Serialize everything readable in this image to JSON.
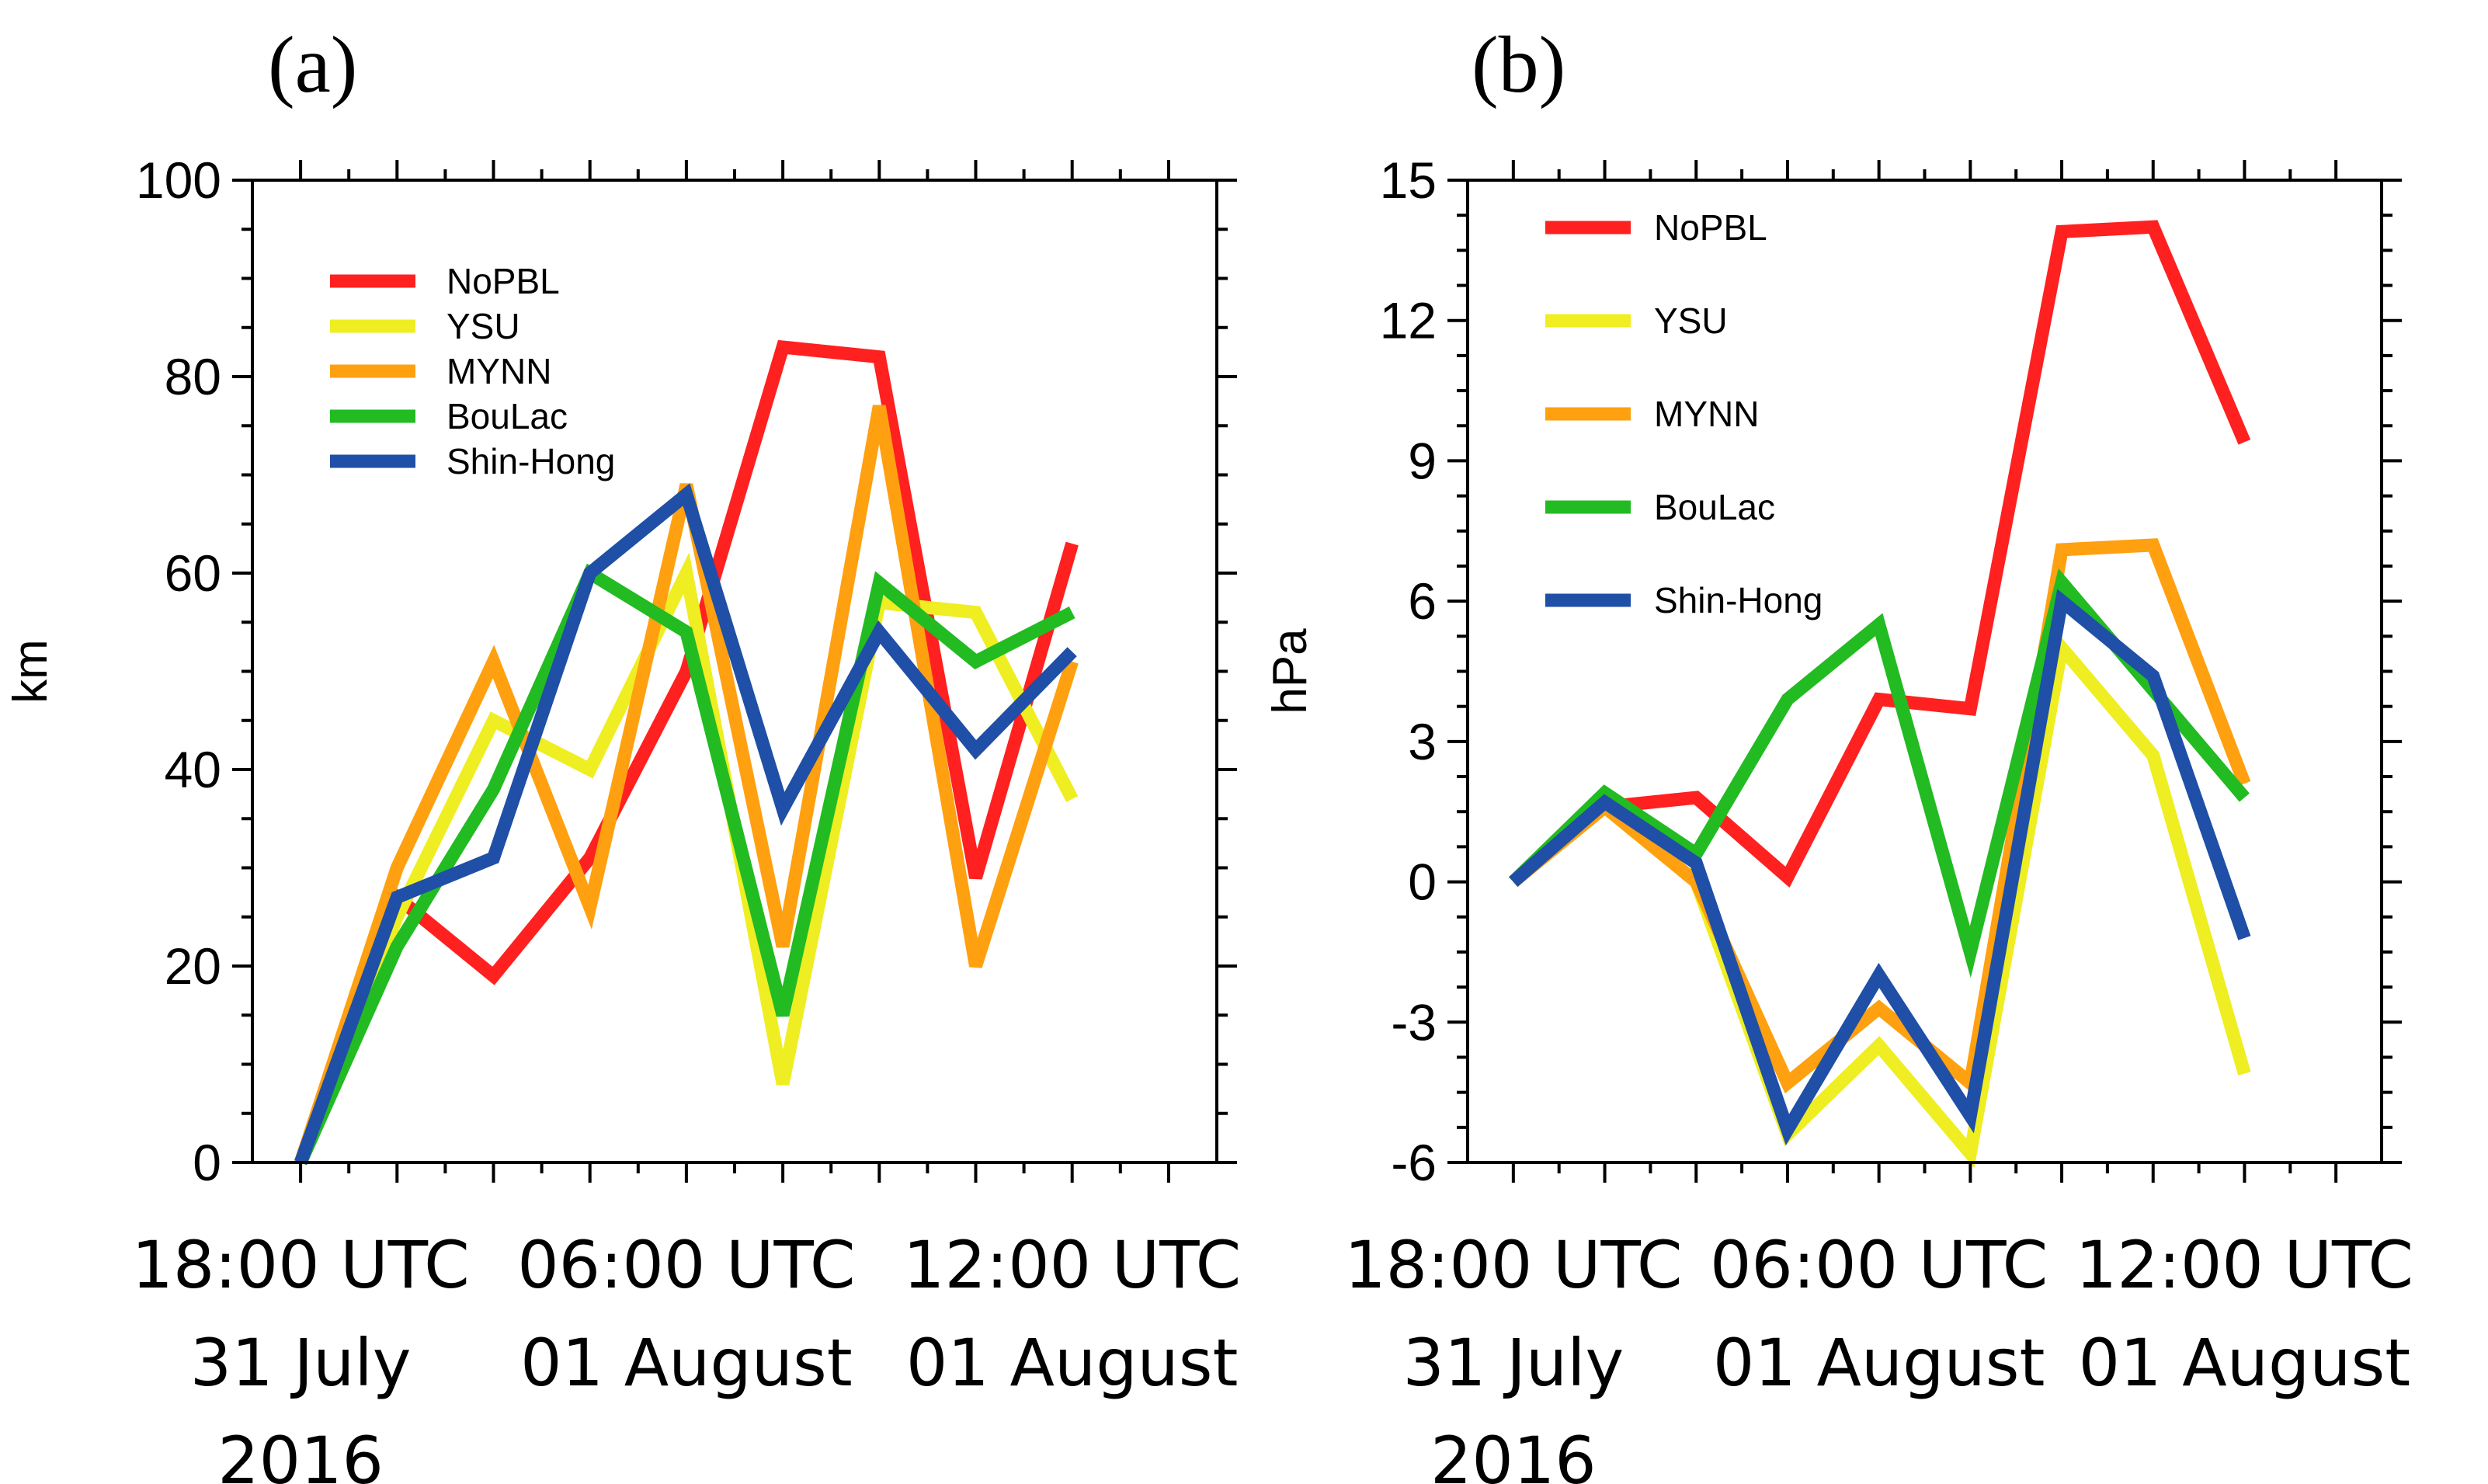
{
  "colors": {
    "NoPBL": "#ff2020",
    "YSU": "#eeee22",
    "MYNN": "#ffa010",
    "BouLac": "#22bb22",
    "Shin-Hong": "#1f4fa6"
  },
  "chart_data": [
    {
      "type": "line",
      "panel_label": "(a)",
      "ylabel": "km",
      "ylim": [
        0,
        100
      ],
      "yticks": [
        0,
        20,
        40,
        60,
        80,
        100
      ],
      "xlim": [
        -0.5,
        9.5
      ],
      "x": [
        0,
        1,
        2,
        3,
        4,
        5,
        6,
        7,
        8
      ],
      "xticks": [
        {
          "pos": 0,
          "lines": [
            "18:00 UTC",
            "31 July",
            "2016"
          ]
        },
        {
          "pos": 3,
          "lines": [
            "06:00 UTC",
            "01 August"
          ]
        },
        {
          "pos": 6,
          "lines": [
            "12:00 UTC",
            "01 August"
          ]
        }
      ],
      "series": [
        {
          "name": "NoPBL",
          "values": [
            0,
            27,
            19,
            31,
            50,
            83,
            82,
            29,
            63
          ]
        },
        {
          "name": "YSU",
          "values": [
            0,
            25,
            45,
            40,
            60,
            8,
            57,
            56,
            37
          ]
        },
        {
          "name": "MYNN",
          "values": [
            0,
            30,
            51,
            26,
            69,
            22,
            77,
            20,
            51
          ]
        },
        {
          "name": "BouLac",
          "values": [
            0,
            22,
            38,
            60,
            54,
            15,
            59,
            51,
            56
          ]
        },
        {
          "name": "Shin-Hong",
          "values": [
            0,
            27,
            31,
            60,
            68,
            36,
            54,
            42,
            52
          ]
        }
      ]
    },
    {
      "type": "line",
      "panel_label": "(b)",
      "ylabel": "hPa",
      "ylim": [
        -6,
        15
      ],
      "yticks": [
        -6,
        -3,
        0,
        3,
        6,
        9,
        12,
        15
      ],
      "xlim": [
        -0.5,
        9.5
      ],
      "x": [
        0,
        1,
        2,
        3,
        4,
        5,
        6,
        7,
        8
      ],
      "xticks": [
        {
          "pos": 0,
          "lines": [
            "18:00 UTC",
            "31 July",
            "2016"
          ]
        },
        {
          "pos": 3,
          "lines": [
            "06:00 UTC",
            "01 August"
          ]
        },
        {
          "pos": 6,
          "lines": [
            "12:00 UTC",
            "01 August"
          ]
        }
      ],
      "series": [
        {
          "name": "NoPBL",
          "values": [
            0,
            1.6,
            1.8,
            0.1,
            3.9,
            3.7,
            13.9,
            14.0,
            9.4
          ]
        },
        {
          "name": "YSU",
          "values": [
            0,
            1.6,
            0,
            -5.4,
            -3.5,
            -5.8,
            5.0,
            2.7,
            -4.1
          ]
        },
        {
          "name": "MYNN",
          "values": [
            0,
            1.6,
            0,
            -4.3,
            -2.7,
            -4.3,
            7.1,
            7.2,
            2.1
          ]
        },
        {
          "name": "BouLac",
          "values": [
            0,
            1.9,
            0.6,
            3.9,
            5.5,
            -1.5,
            6.4,
            4.1,
            1.8
          ]
        },
        {
          "name": "Shin-Hong",
          "values": [
            0,
            1.7,
            0.4,
            -5.3,
            -2.0,
            -5.0,
            6.0,
            4.4,
            -1.2
          ]
        }
      ]
    }
  ]
}
